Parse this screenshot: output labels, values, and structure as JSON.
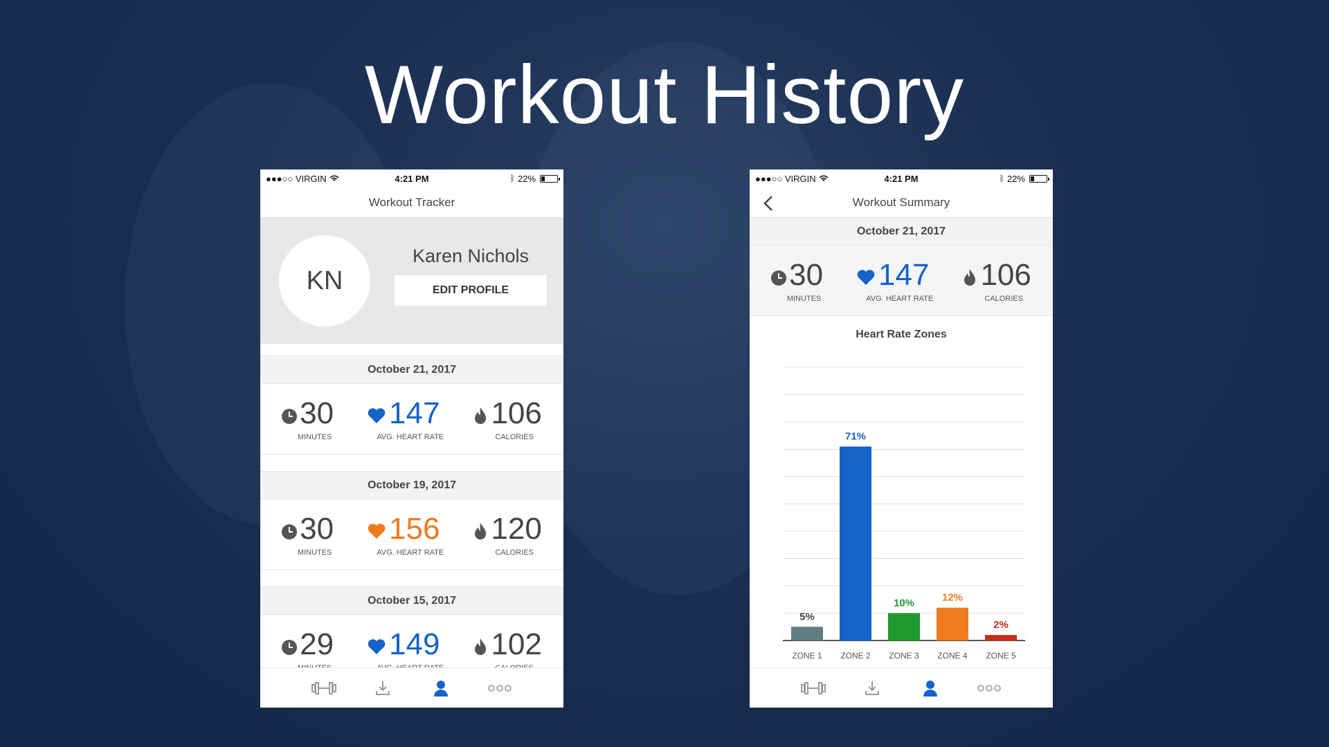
{
  "page": {
    "title": "Workout History"
  },
  "status_bar": {
    "carrier": "●●●○○ VIRGIN",
    "time": "4:21 PM",
    "battery": "22%"
  },
  "tracker": {
    "nav_title": "Workout Tracker",
    "profile": {
      "initials": "KN",
      "name": "Karen Nichols",
      "edit_label": "EDIT PROFILE"
    },
    "entries": [
      {
        "date": "October 21, 2017",
        "minutes": "30",
        "minutes_label": "MINUTES",
        "heart_rate": "147",
        "heart_label": "AVG. HEART RATE",
        "heart_color": "#1663c7",
        "calories": "106",
        "calories_label": "CALORIES"
      },
      {
        "date": "October 19, 2017",
        "minutes": "30",
        "minutes_label": "MINUTES",
        "heart_rate": "156",
        "heart_label": "AVG. HEART RATE",
        "heart_color": "#f07a1e",
        "calories": "120",
        "calories_label": "CALORIES"
      },
      {
        "date": "October 15, 2017",
        "minutes": "29",
        "minutes_label": "MINUTES",
        "heart_rate": "149",
        "heart_label": "AVG. HEART RATE",
        "heart_color": "#1663c7",
        "calories": "102",
        "calories_label": "CALORIES"
      }
    ]
  },
  "summary": {
    "nav_title": "Workout Summary",
    "date": "October 21, 2017",
    "minutes": "30",
    "minutes_label": "MINUTES",
    "heart_rate": "147",
    "heart_label": "AVG. HEART RATE",
    "calories": "106",
    "calories_label": "CALORIES"
  },
  "tab_bar": {
    "icons": [
      "dumbbell-icon",
      "download-icon",
      "person-icon",
      "more-icon"
    ],
    "active_color": "#1663c7",
    "inactive_color": "#9a9a9a"
  },
  "chart_data": {
    "type": "bar",
    "title": "Heart Rate Zones",
    "categories": [
      "ZONE 1",
      "ZONE 2",
      "ZONE 3",
      "ZONE 4",
      "ZONE 5"
    ],
    "values": [
      5,
      71,
      10,
      12,
      2
    ],
    "value_labels": [
      "5%",
      "71%",
      "10%",
      "12%",
      "2%"
    ],
    "colors": [
      "#5f7d80",
      "#1663c7",
      "#1f9a2e",
      "#f07a1e",
      "#c62a1e"
    ],
    "label_colors": [
      "#444444",
      "#1663c7",
      "#1f9a2e",
      "#f07a1e",
      "#c62a1e"
    ],
    "ylim": [
      0,
      100
    ],
    "grid": true
  }
}
